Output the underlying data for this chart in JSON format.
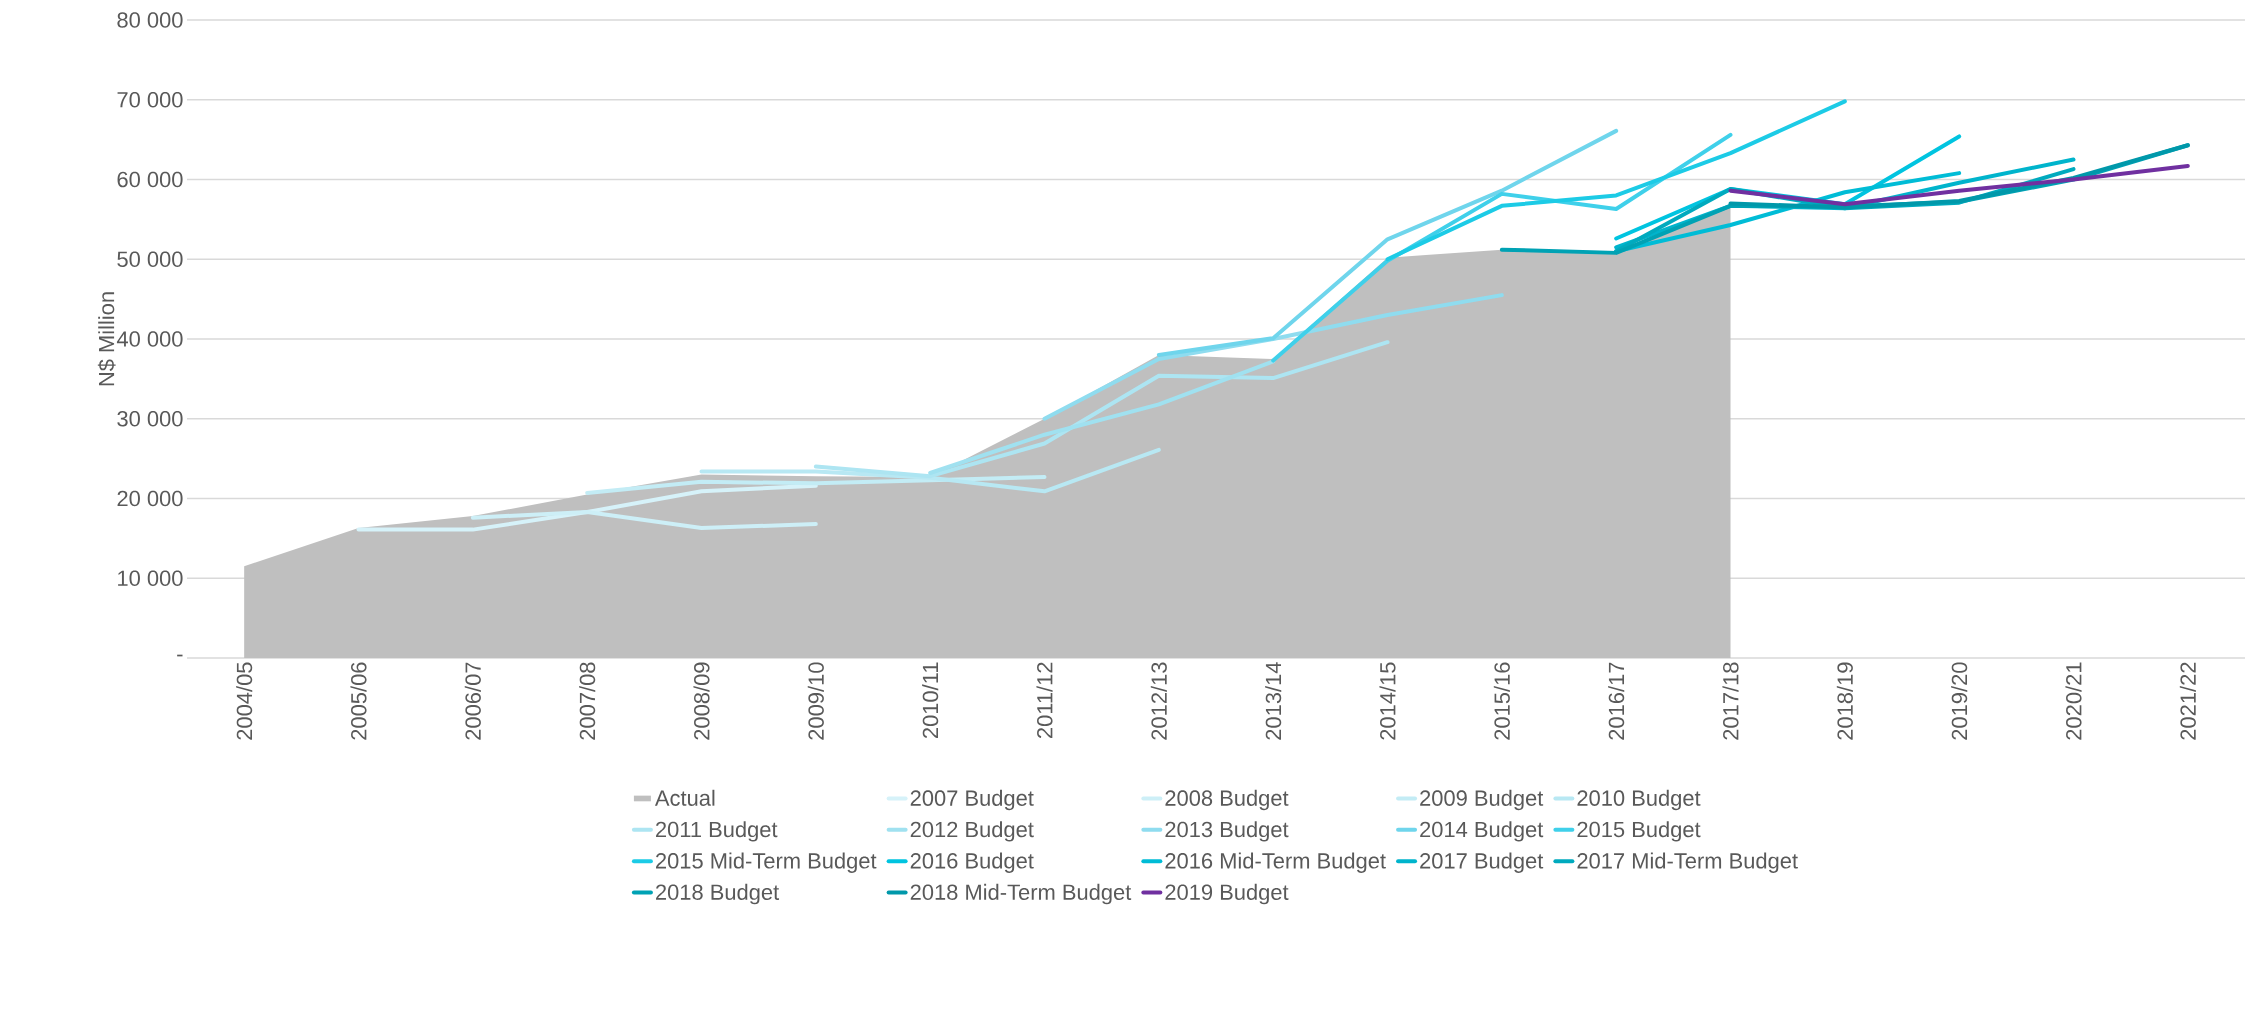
{
  "chart_data": {
    "type": "line",
    "ylabel": "N$ Million",
    "grid": "y",
    "legend": "bottom",
    "categories": [
      "2004/05",
      "2005/06",
      "2006/07",
      "2007/08",
      "2008/09",
      "2009/10",
      "2010/11",
      "2011/12",
      "2012/13",
      "2013/14",
      "2014/15",
      "2015/16",
      "2016/17",
      "2017/18",
      "2018/19",
      "2019/20",
      "2020/21",
      "2021/22"
    ],
    "ylim": [
      0,
      80000
    ],
    "yticks": [
      {
        "value": 0,
        "label": "-"
      },
      {
        "value": 10000,
        "label": "10 000"
      },
      {
        "value": 20000,
        "label": "20 000"
      },
      {
        "value": 30000,
        "label": "30 000"
      },
      {
        "value": 40000,
        "label": "40 000"
      },
      {
        "value": 50000,
        "label": "50 000"
      },
      {
        "value": 60000,
        "label": "60 000"
      },
      {
        "value": 70000,
        "label": "70 000"
      },
      {
        "value": 80000,
        "label": "80 000"
      }
    ],
    "series": [
      {
        "name": "Actual",
        "type": "area",
        "color": "#bfbfbf",
        "values": [
          11500,
          16300,
          17800,
          20500,
          23000,
          22800,
          22700,
          30000,
          38000,
          37500,
          50200,
          51200,
          51000,
          57000,
          null,
          null,
          null,
          null
        ]
      },
      {
        "name": "2007 Budget",
        "color": "#d6f2f9",
        "values": [
          null,
          16100,
          16100,
          18300,
          20900,
          21600,
          null,
          null,
          null,
          null,
          null,
          null,
          null,
          null,
          null,
          null,
          null,
          null
        ]
      },
      {
        "name": "2008 Budget",
        "color": "#cdeff7",
        "values": [
          null,
          null,
          17600,
          18300,
          16300,
          16800,
          null,
          null,
          null,
          null,
          null,
          null,
          null,
          null,
          null,
          null,
          null,
          null
        ]
      },
      {
        "name": "2009 Budget",
        "color": "#c3ecf5",
        "values": [
          null,
          null,
          null,
          20700,
          22100,
          21900,
          22300,
          22700,
          null,
          null,
          null,
          null,
          null,
          null,
          null,
          null,
          null,
          null
        ]
      },
      {
        "name": "2010 Budget",
        "color": "#b8e8f3",
        "values": [
          null,
          null,
          null,
          null,
          23400,
          23400,
          22600,
          20900,
          26100,
          null,
          null,
          null,
          null,
          null,
          null,
          null,
          null,
          null
        ]
      },
      {
        "name": "2011 Budget",
        "color": "#ade5f2",
        "values": [
          null,
          null,
          null,
          null,
          null,
          24000,
          22800,
          26900,
          35400,
          35100,
          39600,
          null,
          null,
          null,
          null,
          null,
          null,
          null
        ]
      },
      {
        "name": "2012 Budget",
        "color": "#a0e1f0",
        "values": [
          null,
          null,
          null,
          null,
          null,
          null,
          23200,
          28000,
          31800,
          37200,
          null,
          null,
          null,
          null,
          null,
          null,
          null,
          null
        ]
      },
      {
        "name": "2013 Budget",
        "color": "#8fdcef",
        "values": [
          null,
          null,
          null,
          null,
          null,
          null,
          null,
          30000,
          37500,
          40000,
          43000,
          45500,
          null,
          null,
          null,
          null,
          null,
          null
        ]
      },
      {
        "name": "2014 Budget",
        "color": "#6fd5ec",
        "values": [
          null,
          null,
          null,
          null,
          null,
          null,
          null,
          null,
          38000,
          40100,
          52500,
          58600,
          66100,
          null,
          null,
          null,
          null,
          null
        ]
      },
      {
        "name": "2015 Budget",
        "color": "#3fd0ea",
        "values": [
          null,
          null,
          null,
          null,
          null,
          null,
          null,
          null,
          null,
          37300,
          49800,
          58200,
          56300,
          65600,
          null,
          null,
          null,
          null
        ]
      },
      {
        "name": "2015 Mid-Term Budget",
        "color": "#1ccbe6",
        "values": [
          null,
          null,
          null,
          null,
          null,
          null,
          null,
          null,
          null,
          null,
          50000,
          56700,
          58000,
          63300,
          69800,
          null,
          null,
          null
        ]
      },
      {
        "name": "2016 Budget",
        "color": "#00c4e0",
        "values": [
          null,
          null,
          null,
          null,
          null,
          null,
          null,
          null,
          null,
          null,
          null,
          null,
          52600,
          58800,
          56900,
          65400,
          null,
          null
        ]
      },
      {
        "name": "2016 Mid-Term Budget",
        "color": "#00bcd6",
        "values": [
          null,
          null,
          null,
          null,
          null,
          null,
          null,
          null,
          null,
          null,
          null,
          null,
          51000,
          54300,
          58400,
          60800,
          null,
          null
        ]
      },
      {
        "name": "2017 Budget",
        "color": "#00b4cc",
        "values": [
          null,
          null,
          null,
          null,
          null,
          null,
          null,
          null,
          null,
          null,
          null,
          null,
          51500,
          56700,
          56400,
          59600,
          62500,
          null
        ]
      },
      {
        "name": "2017 Mid-Term Budget",
        "color": "#00aabe",
        "values": [
          null,
          null,
          null,
          null,
          null,
          null,
          null,
          null,
          null,
          null,
          null,
          null,
          51000,
          58800,
          56400,
          57100,
          61300,
          null
        ]
      },
      {
        "name": "2018 Budget",
        "color": "#00a2b4",
        "values": [
          null,
          null,
          null,
          null,
          null,
          null,
          null,
          null,
          null,
          null,
          null,
          51200,
          50800,
          56700,
          56600,
          57200,
          60000,
          64300
        ]
      },
      {
        "name": "2018 Mid-Term Budget",
        "color": "#0098aa",
        "values": [
          null,
          null,
          null,
          null,
          null,
          null,
          null,
          null,
          null,
          null,
          null,
          null,
          null,
          57000,
          56500,
          57300,
          60200,
          64300
        ]
      },
      {
        "name": "2019 Budget",
        "color": "#7030a0",
        "values": [
          null,
          null,
          null,
          null,
          null,
          null,
          null,
          null,
          null,
          null,
          null,
          null,
          null,
          58600,
          56900,
          58600,
          60000,
          61700
        ]
      }
    ]
  }
}
